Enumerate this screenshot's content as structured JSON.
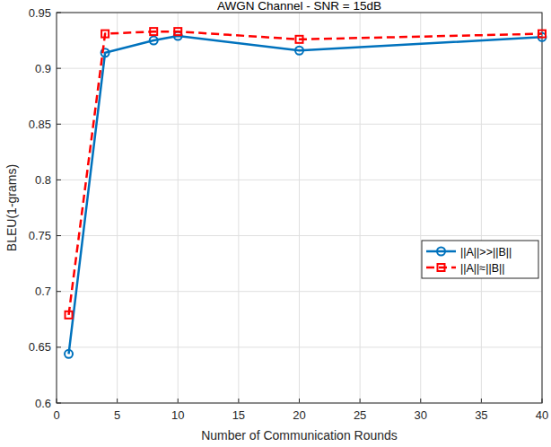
{
  "chart_data": {
    "type": "line",
    "title": "AWGN Channel - SNR = 15dB",
    "x_label": "Number of Communication Rounds",
    "y_label": "BLEU(1-grams)",
    "x": [
      1,
      4,
      8,
      10,
      20,
      40
    ],
    "series": [
      {
        "name": "||A||>>||B||",
        "color": "#0072bd",
        "marker": "circle",
        "line_style": "solid",
        "values": [
          0.644,
          0.914,
          0.925,
          0.929,
          0.916,
          0.928
        ]
      },
      {
        "name": "||A||≈||B||",
        "color": "#ff0000",
        "marker": "square",
        "line_style": "dashed",
        "values": [
          0.679,
          0.931,
          0.933,
          0.933,
          0.926,
          0.931
        ]
      }
    ],
    "xlim": [
      0,
      40
    ],
    "xticks": [
      0,
      5,
      10,
      15,
      20,
      25,
      30,
      35,
      40
    ],
    "ylim": [
      0.6,
      0.95
    ],
    "yticks": [
      0.6,
      0.65,
      0.7,
      0.75,
      0.8,
      0.85,
      0.9,
      0.95
    ],
    "grid": true,
    "legend": "east"
  }
}
